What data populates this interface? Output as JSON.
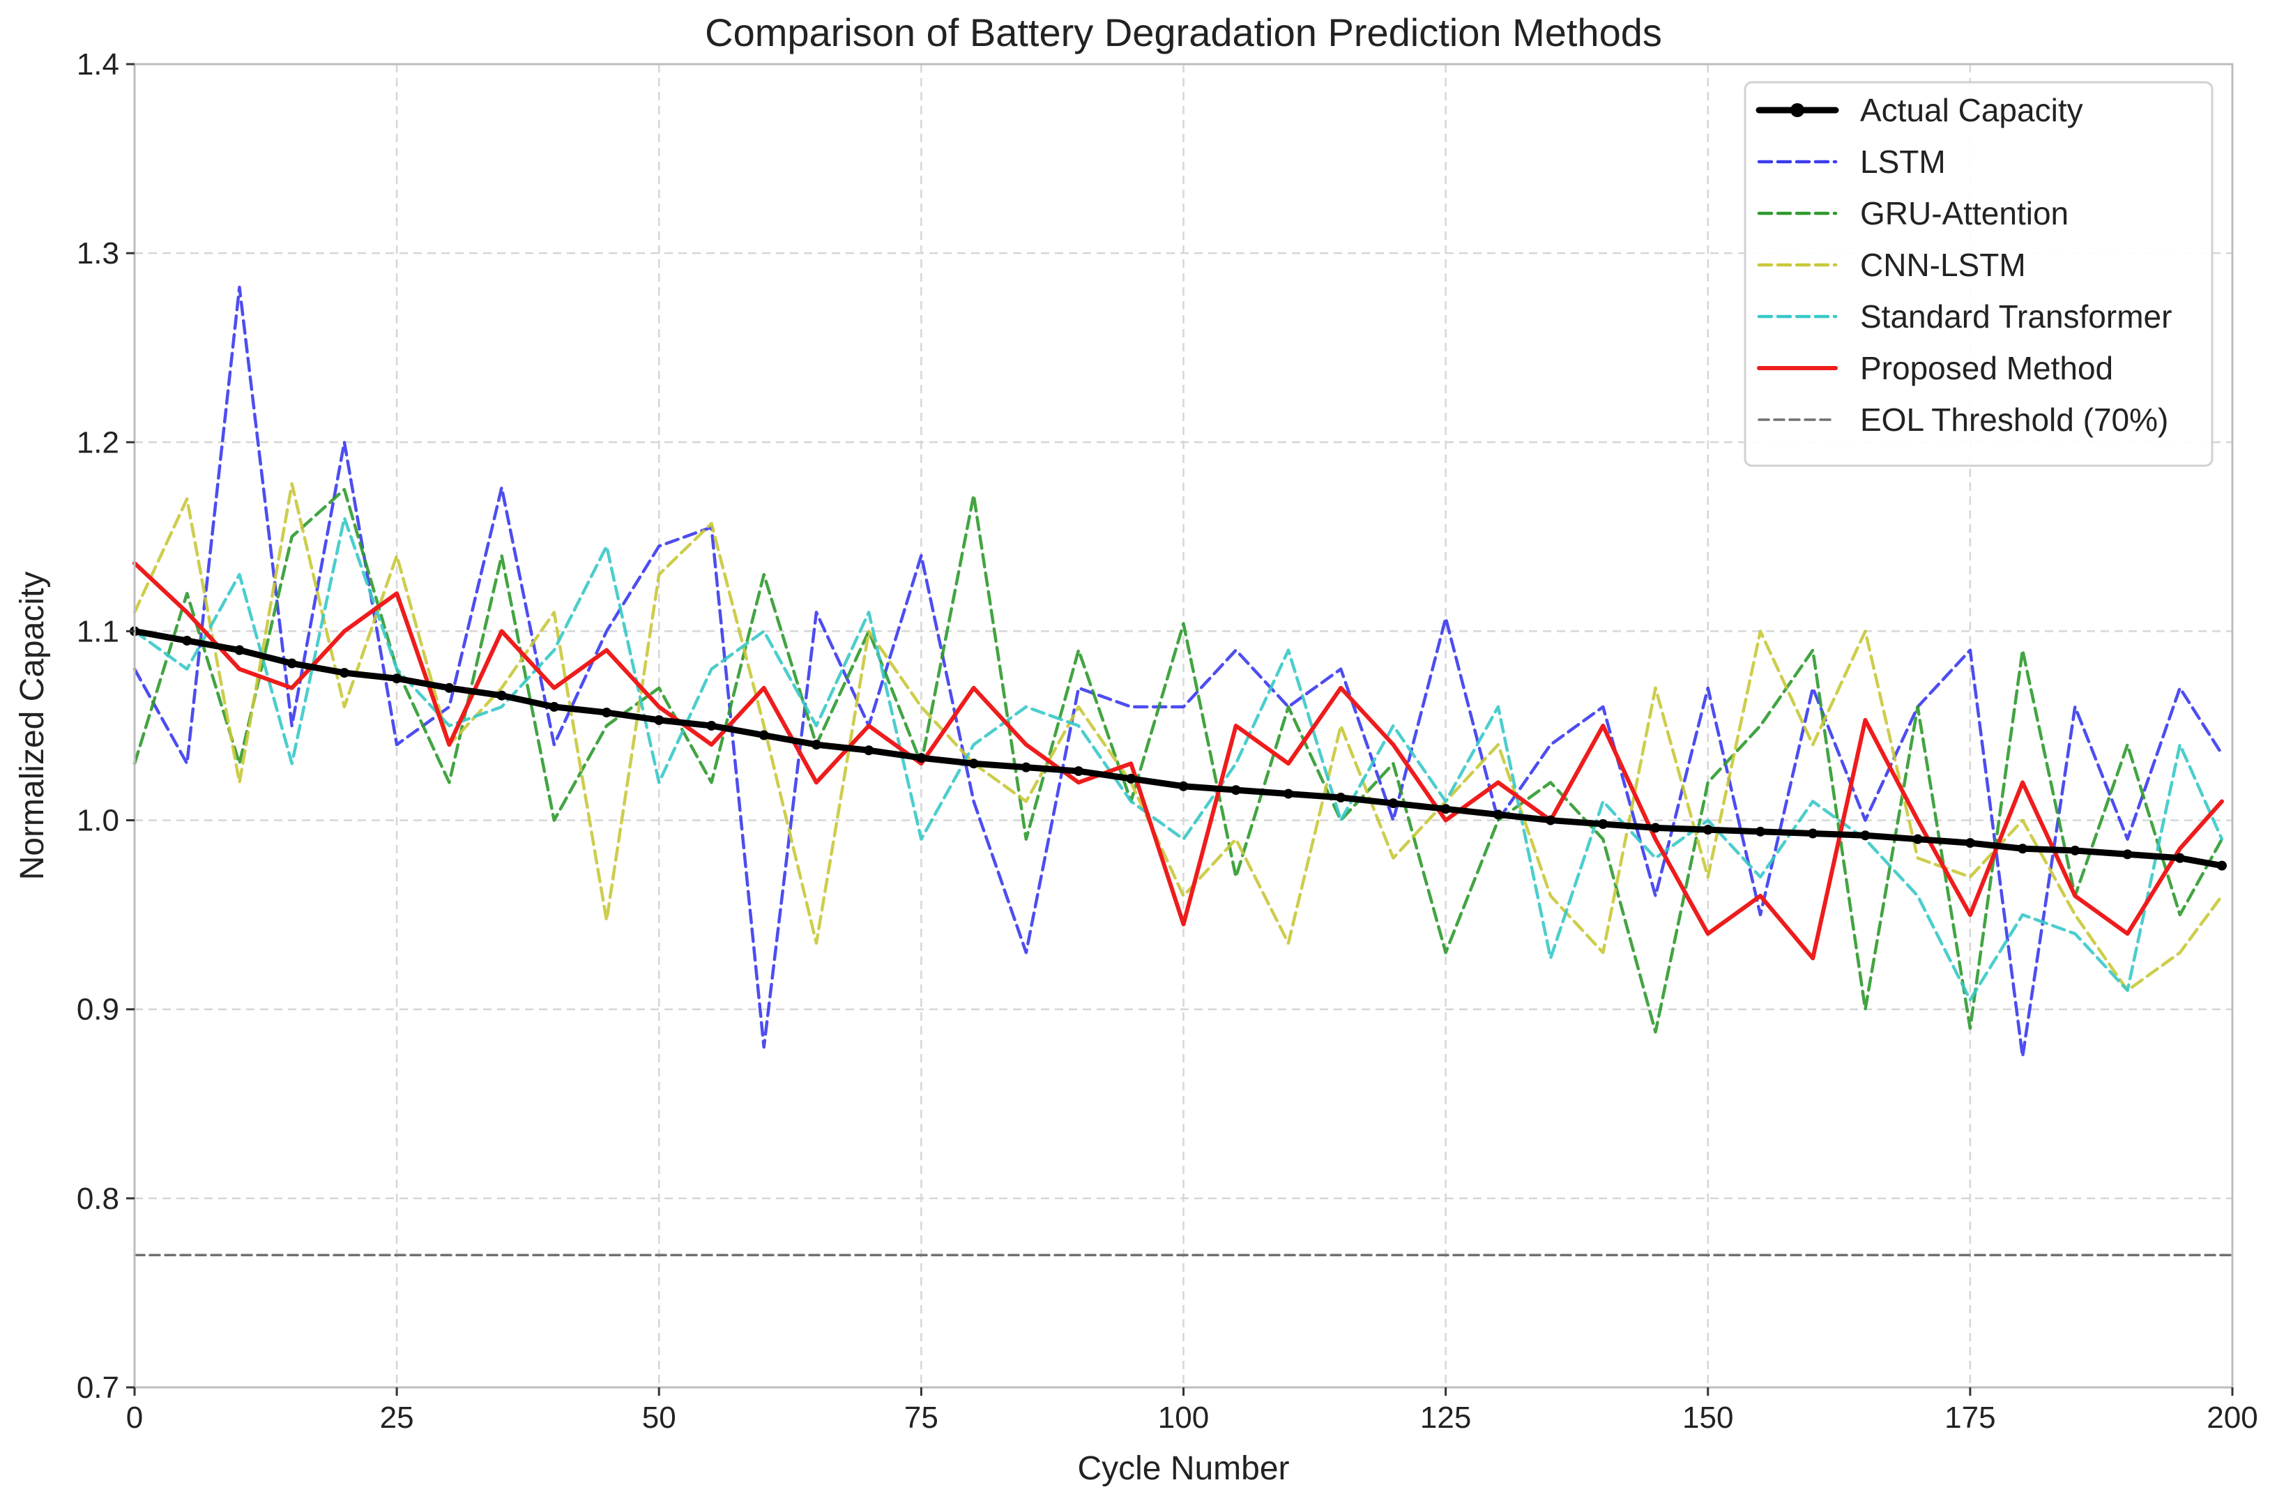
{
  "chart_data": {
    "type": "line",
    "title": "Comparison of Battery Degradation Prediction Methods",
    "xlabel": "Cycle Number",
    "ylabel": "Normalized Capacity",
    "xlim": [
      0,
      200
    ],
    "ylim": [
      0.7,
      1.4
    ],
    "x_ticks": [
      "0",
      "25",
      "50",
      "75",
      "100",
      "125",
      "150",
      "175",
      "200"
    ],
    "y_ticks": [
      "0.7",
      "0.8",
      "0.9",
      "1.0",
      "1.1",
      "1.2",
      "1.3",
      "1.4"
    ],
    "grid": true,
    "legend_position": "top-right",
    "x": [
      0,
      5,
      10,
      15,
      20,
      25,
      30,
      35,
      40,
      45,
      50,
      55,
      60,
      65,
      70,
      75,
      80,
      85,
      90,
      95,
      100,
      105,
      110,
      115,
      120,
      125,
      130,
      135,
      140,
      145,
      150,
      155,
      160,
      165,
      170,
      175,
      180,
      185,
      190,
      195,
      199
    ],
    "series": [
      {
        "name": "Actual Capacity",
        "color": "#000000",
        "style": "solid-marker",
        "values": [
          1.1,
          1.095,
          1.09,
          1.083,
          1.078,
          1.075,
          1.07,
          1.066,
          1.06,
          1.057,
          1.053,
          1.05,
          1.045,
          1.04,
          1.037,
          1.033,
          1.03,
          1.028,
          1.026,
          1.022,
          1.018,
          1.016,
          1.014,
          1.012,
          1.009,
          1.006,
          1.003,
          1.0,
          0.998,
          0.996,
          0.995,
          0.994,
          0.993,
          0.992,
          0.99,
          0.988,
          0.985,
          0.984,
          0.982,
          0.98,
          0.976
        ]
      },
      {
        "name": "LSTM",
        "color": "#3a3aee",
        "style": "dashed",
        "values": [
          1.08,
          1.03,
          1.282,
          1.05,
          1.2,
          1.04,
          1.06,
          1.176,
          1.04,
          1.1,
          1.145,
          1.155,
          0.88,
          1.11,
          1.05,
          1.14,
          1.01,
          0.93,
          1.07,
          1.06,
          1.06,
          1.09,
          1.06,
          1.08,
          1.0,
          1.107,
          1.0,
          1.04,
          1.06,
          0.96,
          1.07,
          0.95,
          1.07,
          1.0,
          1.06,
          1.09,
          0.875,
          1.06,
          0.99,
          1.07,
          1.035
        ]
      },
      {
        "name": "GRU-Attention",
        "color": "#2e9a2e",
        "style": "dashed",
        "values": [
          1.03,
          1.12,
          1.03,
          1.15,
          1.175,
          1.08,
          1.02,
          1.14,
          1.0,
          1.05,
          1.07,
          1.02,
          1.13,
          1.04,
          1.1,
          1.03,
          1.172,
          0.99,
          1.09,
          1.01,
          1.104,
          0.97,
          1.06,
          1.0,
          1.03,
          0.93,
          1.0,
          1.02,
          0.99,
          0.888,
          1.02,
          1.05,
          1.09,
          0.9,
          1.06,
          0.89,
          1.09,
          0.96,
          1.04,
          0.95,
          0.99
        ]
      },
      {
        "name": "CNN-LSTM",
        "color": "#c8c83a",
        "style": "dashed",
        "values": [
          1.11,
          1.17,
          1.02,
          1.178,
          1.06,
          1.14,
          1.04,
          1.07,
          1.11,
          0.947,
          1.13,
          1.157,
          1.05,
          0.935,
          1.1,
          1.06,
          1.03,
          1.01,
          1.06,
          1.02,
          0.96,
          0.99,
          0.935,
          1.05,
          0.98,
          1.01,
          1.04,
          0.96,
          0.93,
          1.07,
          0.97,
          1.1,
          1.04,
          1.1,
          0.98,
          0.97,
          1.0,
          0.95,
          0.91,
          0.93,
          0.96
        ]
      },
      {
        "name": "Standard Transformer",
        "color": "#38c8c8",
        "style": "dashed",
        "values": [
          1.1,
          1.08,
          1.13,
          1.03,
          1.16,
          1.08,
          1.05,
          1.06,
          1.09,
          1.145,
          1.02,
          1.08,
          1.1,
          1.05,
          1.11,
          0.99,
          1.04,
          1.06,
          1.05,
          1.01,
          0.99,
          1.03,
          1.09,
          1.0,
          1.05,
          1.01,
          1.06,
          0.927,
          1.01,
          0.98,
          1.0,
          0.97,
          1.01,
          0.99,
          0.96,
          0.905,
          0.95,
          0.94,
          0.91,
          1.04,
          0.99
        ]
      },
      {
        "name": "Proposed Method",
        "color": "#ee1c1c",
        "style": "solid",
        "values": [
          1.136,
          1.11,
          1.08,
          1.07,
          1.1,
          1.12,
          1.04,
          1.1,
          1.07,
          1.09,
          1.06,
          1.04,
          1.07,
          1.02,
          1.05,
          1.03,
          1.07,
          1.04,
          1.02,
          1.03,
          0.945,
          1.05,
          1.03,
          1.07,
          1.04,
          1.0,
          1.02,
          1.0,
          1.05,
          0.99,
          0.94,
          0.96,
          0.927,
          1.053,
          1.0,
          0.95,
          1.02,
          0.96,
          0.94,
          0.985,
          1.01
        ]
      },
      {
        "name": "EOL Threshold (70%)",
        "color": "#707070",
        "style": "dashed-thin",
        "values": [
          0.77,
          0.77,
          0.77,
          0.77,
          0.77,
          0.77,
          0.77,
          0.77,
          0.77,
          0.77,
          0.77,
          0.77,
          0.77,
          0.77,
          0.77,
          0.77,
          0.77,
          0.77,
          0.77,
          0.77,
          0.77,
          0.77,
          0.77,
          0.77,
          0.77,
          0.77,
          0.77,
          0.77,
          0.77,
          0.77,
          0.77,
          0.77,
          0.77,
          0.77,
          0.77,
          0.77,
          0.77,
          0.77,
          0.77,
          0.77,
          0.77
        ]
      }
    ]
  }
}
